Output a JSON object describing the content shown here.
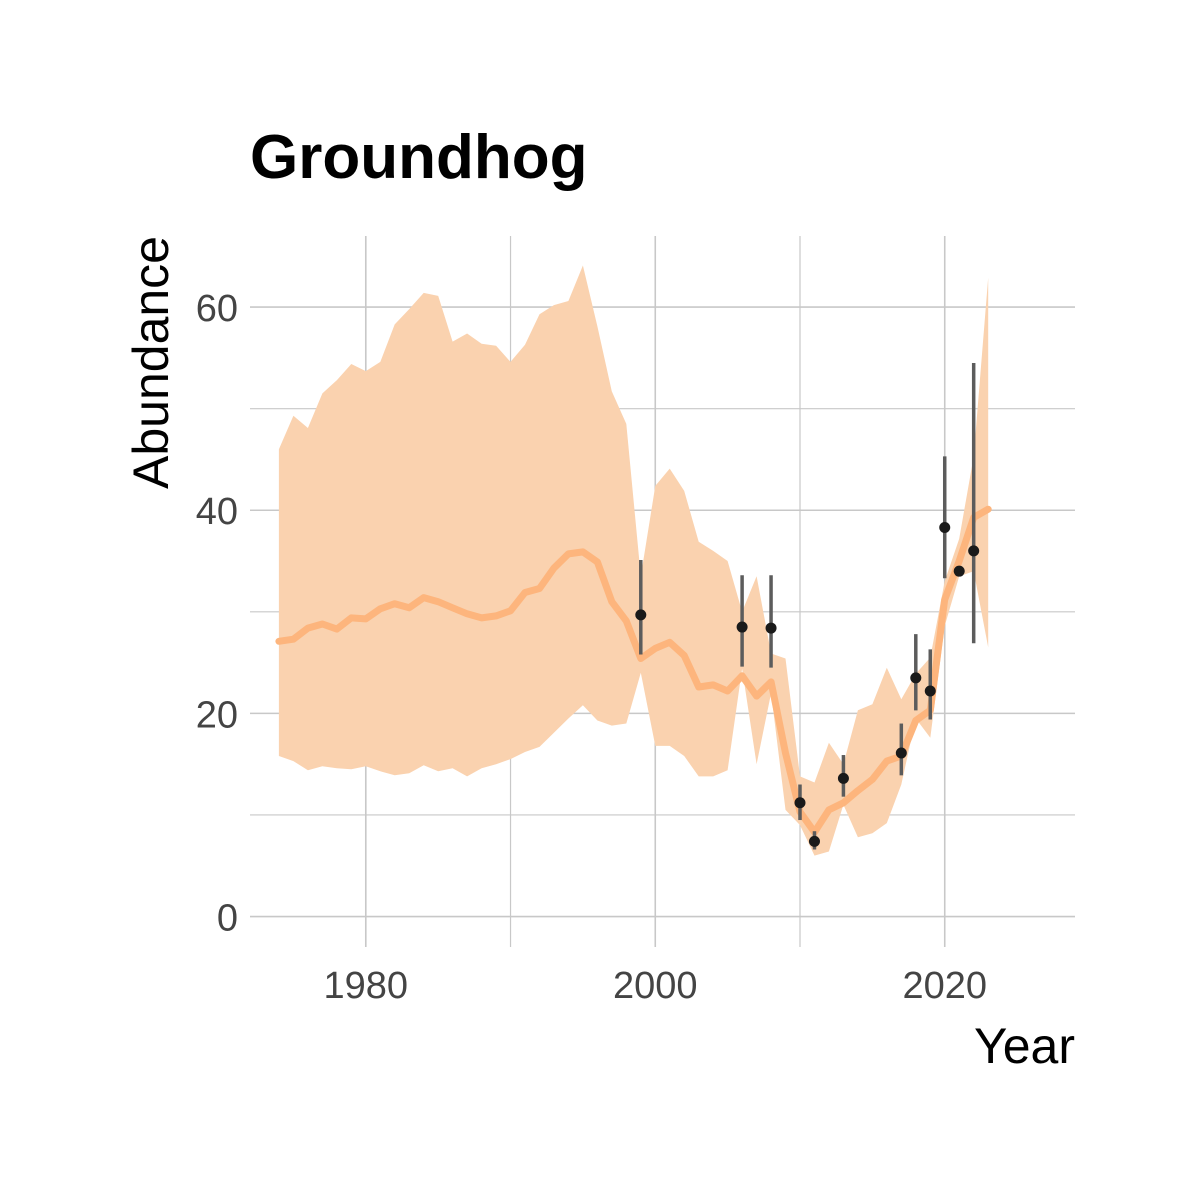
{
  "chart_data": {
    "type": "line",
    "title": "Groundhog",
    "xlabel": "Year",
    "ylabel": "Abundance",
    "xlim": [
      1972,
      2029
    ],
    "ylim": [
      -3,
      67
    ],
    "xticks": [
      1980,
      2000,
      2020
    ],
    "yticks": [
      0,
      20,
      40,
      60
    ],
    "x_minor_gridlines": [
      1990,
      2010
    ],
    "y_minor_gridlines": [
      10,
      30,
      50
    ],
    "grid": true,
    "legend": "none",
    "colors": {
      "trend": "#FDB57D",
      "ribbon": "#FAD2AF",
      "points": "#1A1A1A",
      "errorbars": "#5C5C5C",
      "grid": "#C8C8C8"
    },
    "series": [
      {
        "type": "line-ribbon",
        "x": [
          1974,
          1975,
          1976,
          1977,
          1978,
          1979,
          1980,
          1981,
          1982,
          1983,
          1984,
          1985,
          1986,
          1987,
          1988,
          1989,
          1990,
          1991,
          1992,
          1993,
          1994,
          1995,
          1996,
          1997,
          1998,
          1999,
          2000,
          2001,
          2002,
          2003,
          2004,
          2005,
          2006,
          2007,
          2008,
          2009,
          2010,
          2011,
          2012,
          2013,
          2014,
          2015,
          2016,
          2017,
          2018,
          2019,
          2020,
          2021,
          2022,
          2023
        ],
        "y": [
          27.1,
          27.3,
          28.4,
          28.8,
          28.3,
          29.4,
          29.3,
          30.3,
          30.8,
          30.4,
          31.4,
          31.0,
          30.4,
          29.8,
          29.4,
          29.6,
          30.1,
          31.9,
          32.3,
          34.3,
          35.7,
          35.9,
          34.9,
          31.0,
          29.1,
          25.4,
          26.4,
          27.0,
          25.7,
          22.6,
          22.8,
          22.2,
          23.7,
          21.7,
          23.1,
          16.1,
          10.3,
          8.3,
          10.5,
          11.2,
          12.4,
          13.5,
          15.3,
          15.8,
          19.3,
          20.3,
          31.2,
          35.0,
          39.3,
          40.1
        ],
        "lower": [
          15.8,
          15.3,
          14.4,
          14.8,
          14.6,
          14.5,
          14.8,
          14.3,
          13.9,
          14.1,
          14.9,
          14.3,
          14.6,
          13.8,
          14.6,
          15.0,
          15.5,
          16.2,
          16.7,
          18.1,
          19.5,
          20.8,
          19.3,
          18.8,
          19.0,
          24.0,
          16.8,
          16.8,
          15.8,
          13.8,
          13.8,
          14.4,
          24.4,
          15.0,
          22.0,
          10.5,
          9.0,
          6.0,
          6.4,
          11.0,
          7.8,
          8.2,
          9.2,
          13.0,
          19.5,
          17.6,
          28.6,
          33.5,
          34.0,
          26.5
        ],
        "upper": [
          46.0,
          49.3,
          48.1,
          51.5,
          52.8,
          54.4,
          53.7,
          54.6,
          58.3,
          59.8,
          61.4,
          61.1,
          56.6,
          57.4,
          56.4,
          56.2,
          54.6,
          56.3,
          59.3,
          60.2,
          60.6,
          64.1,
          58.1,
          51.7,
          48.5,
          33.5,
          42.4,
          44.1,
          41.9,
          36.9,
          36.0,
          35.0,
          30.0,
          33.5,
          25.9,
          25.4,
          13.8,
          13.2,
          17.1,
          15.0,
          20.3,
          20.9,
          24.5,
          21.4,
          23.9,
          25.5,
          33.0,
          37.2,
          45.3,
          62.9
        ]
      },
      {
        "type": "points-errorbars",
        "x": [
          1999,
          2006,
          2008,
          2010,
          2011,
          2013,
          2017,
          2018,
          2019,
          2020,
          2021,
          2022
        ],
        "y": [
          29.7,
          28.5,
          28.4,
          11.2,
          7.4,
          13.6,
          16.1,
          23.5,
          22.2,
          38.3,
          34.0,
          36.0
        ],
        "lower": [
          25.8,
          24.6,
          24.5,
          9.5,
          6.6,
          11.8,
          13.9,
          20.3,
          19.4,
          33.3,
          34.0,
          26.9
        ],
        "upper": [
          35.1,
          33.6,
          33.6,
          13.0,
          8.4,
          15.9,
          19.0,
          27.8,
          26.3,
          45.3,
          34.0,
          54.5
        ]
      }
    ]
  }
}
